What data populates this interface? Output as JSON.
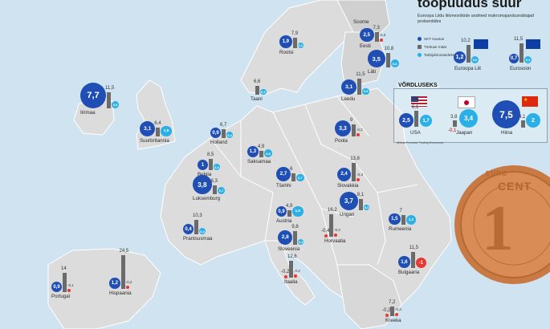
{
  "header": {
    "title": "toopuudus suur",
    "subtitle": "Euroopa Liidu liikmesriikide andmed makromajandusnäitajad protsentides"
  },
  "legend": {
    "items": [
      {
        "label": "SKT muutus",
        "color": "#1f4fb4"
      },
      {
        "label": "Töötuse määr",
        "color": "#6b6b6b"
      },
      {
        "label": "Tarbijahinnaindeks",
        "color": "#2ab0e6"
      }
    ],
    "blocks": [
      {
        "name": "Euroopa Liit",
        "gdp": "1,2",
        "unemp": "10,2",
        "cpi": "0,6"
      },
      {
        "name": "Eurosoon",
        "gdp": "0,7",
        "unemp": "11,5",
        "cpi": "0,4"
      }
    ]
  },
  "comparison": {
    "title": "VÕRDLUSEKS",
    "countries": [
      {
        "name": "USA",
        "gdp": "2,5",
        "unemp": "6,1",
        "cpi": "1,7"
      },
      {
        "name": "Jaapan",
        "gdp": "-0,1",
        "unemp": "3,8",
        "cpi": "3,4"
      },
      {
        "name": "Hiina",
        "gdp": "7,5",
        "unemp": "4,1",
        "cpi": "2"
      }
    ],
    "source": "Allikas: Eurostat, Trading Economics"
  },
  "colors": {
    "sea": "#cfe4f0",
    "land": "#dcdcdc",
    "gdp": "#1f4fb4",
    "unemployment": "#6b6b6b",
    "cpi": "#2ab0e6",
    "negative": "#e53935"
  },
  "countries": [
    {
      "name": "Soome",
      "gdp": "",
      "unemp": "",
      "cpi": ""
    },
    {
      "name": "Rootsi",
      "gdp": "1,9",
      "unemp": "7,9",
      "cpi": "0,1"
    },
    {
      "name": "Eesti",
      "gdp": "2,5",
      "unemp": "7,3",
      "cpi": "-0,3"
    },
    {
      "name": "Läti",
      "gdp": "3,5",
      "unemp": "10,8",
      "cpi": "0,8"
    },
    {
      "name": "Leedu",
      "gdp": "3,1",
      "unemp": "11,5",
      "cpi": "0,5"
    },
    {
      "name": "Iirimaa",
      "gdp": "7,7",
      "unemp": "11,5",
      "cpi": "0,6"
    },
    {
      "name": "Suurbritannia",
      "gdp": "3,1",
      "unemp": "6,4",
      "cpi": "1,5"
    },
    {
      "name": "Holland",
      "gdp": "0,9",
      "unemp": "6,7",
      "cpi": "0,4"
    },
    {
      "name": "Belgia",
      "gdp": "1",
      "unemp": "8,5",
      "cpi": "0,4"
    },
    {
      "name": "Saksamaa",
      "gdp": "1,3",
      "unemp": "4,9",
      "cpi": "0,8"
    },
    {
      "name": "Taani",
      "gdp": "",
      "unemp": "6,6",
      "cpi": "0,3"
    },
    {
      "name": "Poola",
      "gdp": "3,3",
      "unemp": "9",
      "cpi": "-0,2"
    },
    {
      "name": "Luksemburg",
      "gdp": "3,8",
      "unemp": "6,3",
      "cpi": "0,7"
    },
    {
      "name": "Tšehhi",
      "gdp": "2,7",
      "unemp": "6",
      "cpi": "0,7"
    },
    {
      "name": "Slovakkia",
      "gdp": "2,4",
      "unemp": "13,8",
      "cpi": "-0,3"
    },
    {
      "name": "Austria",
      "gdp": "0,9",
      "unemp": "4,9",
      "cpi": "1,5"
    },
    {
      "name": "Ungari",
      "gdp": "3,7",
      "unemp": "8,1",
      "cpi": "0,3"
    },
    {
      "name": "Rumeenia",
      "gdp": "1,5",
      "unemp": "7",
      "cpi": "1,3"
    },
    {
      "name": "Prantsusmaa",
      "gdp": "0,4",
      "unemp": "10,3",
      "cpi": "0,4"
    },
    {
      "name": "Sloveenia",
      "gdp": "2,8",
      "unemp": "9,8",
      "cpi": "0,1"
    },
    {
      "name": "Horvaatia",
      "gdp": "-0,4",
      "unemp": "16,2",
      "cpi": "-0,3"
    },
    {
      "name": "Bulgaaria",
      "gdp": "1,6",
      "unemp": "11,5",
      "cpi": "-1"
    },
    {
      "name": "Portugal",
      "gdp": "0,9",
      "unemp": "14",
      "cpi": "-0,1"
    },
    {
      "name": "Hispaania",
      "gdp": "1,2",
      "unemp": "24,5",
      "cpi": "-0,2"
    },
    {
      "name": "Itaalia",
      "gdp": "-0,2",
      "unemp": "12,6",
      "cpi": "-0,2"
    },
    {
      "name": "Kreeka",
      "gdp": "-0,2",
      "unemp": "7,2",
      "cpi": "-0,3"
    }
  ],
  "coin": {
    "value": "1",
    "line1": "EURO",
    "line2": "CENT"
  }
}
